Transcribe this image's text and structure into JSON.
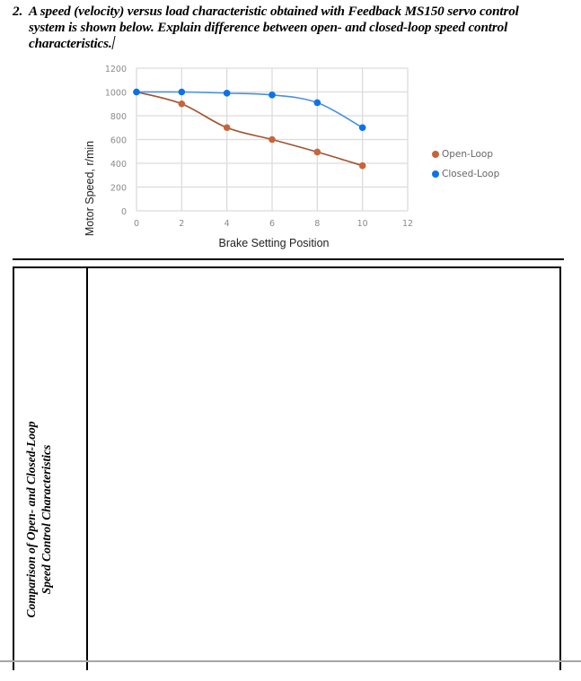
{
  "question": {
    "number": "2.",
    "lines": [
      "A speed (velocity) versus load characteristic obtained with Feedback MS150 servo control",
      "system is shown below. Explain difference between open- and closed-loop speed control",
      "characteristics."
    ]
  },
  "chart_data": {
    "type": "line",
    "title": "",
    "xlabel": "Brake Setting Position",
    "ylabel": "Motor Speed, r/min",
    "xlim": [
      0,
      12
    ],
    "ylim": [
      0,
      1200
    ],
    "xticks": [
      "0",
      "2",
      "4",
      "6",
      "8",
      "10",
      "12"
    ],
    "yticks": [
      "0",
      "200",
      "400",
      "600",
      "800",
      "1000",
      "1200"
    ],
    "grid": true,
    "legend_position": "right",
    "x": [
      0,
      2,
      4,
      6,
      8,
      10
    ],
    "series": [
      {
        "name": "Open-Loop",
        "color": "#c8643a",
        "line_color": "#a0522d",
        "values": [
          1000,
          900,
          700,
          600,
          495,
          380
        ]
      },
      {
        "name": "Closed-Loop",
        "color": "#0b72ea",
        "line_color": "#4a90e2",
        "values": [
          1000,
          1000,
          990,
          975,
          910,
          700
        ]
      }
    ]
  },
  "legend": {
    "open_loop": "Open-Loop",
    "closed_loop": "Closed-Loop"
  },
  "answer_table": {
    "label_line1": "Comparison of Open- and Closed-Loop",
    "label_line2": "Speed Control Characteristics",
    "answer": ""
  }
}
